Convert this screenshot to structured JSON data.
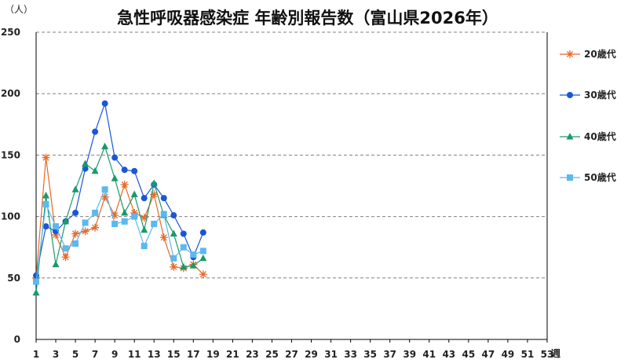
{
  "chart_data": {
    "type": "line",
    "title": "急性呼吸器感染症 年齢別報告数（富山県2026年）",
    "y_unit_label": "（人）",
    "x_unit_label": "週",
    "ylim": [
      0,
      250
    ],
    "yticks": [
      0,
      50,
      100,
      150,
      200,
      250
    ],
    "xlim": [
      1,
      53
    ],
    "xticks": [
      1,
      3,
      5,
      7,
      9,
      11,
      13,
      15,
      17,
      19,
      21,
      23,
      25,
      27,
      29,
      31,
      33,
      35,
      37,
      39,
      41,
      43,
      45,
      47,
      49,
      51,
      53
    ],
    "grid": "horizontal dashed",
    "legend_position": "right",
    "series": [
      {
        "name": "20歳代",
        "color": "#e8692a",
        "marker": "asterisk",
        "x": [
          1,
          2,
          3,
          4,
          5,
          6,
          7,
          8,
          9,
          10,
          11,
          12,
          13,
          14,
          15,
          16,
          17,
          18
        ],
        "values": [
          50,
          148,
          85,
          67,
          86,
          88,
          91,
          116,
          101,
          126,
          103,
          99,
          118,
          83,
          59,
          58,
          61,
          53
        ]
      },
      {
        "name": "30歳代",
        "color": "#1a56d6",
        "marker": "circle",
        "x": [
          1,
          2,
          3,
          4,
          5,
          6,
          7,
          8,
          9,
          10,
          11,
          12,
          13,
          14,
          15,
          16,
          17,
          18
        ],
        "values": [
          52,
          92,
          88,
          96,
          103,
          139,
          169,
          192,
          148,
          138,
          137,
          115,
          126,
          115,
          101,
          86,
          67,
          87
        ]
      },
      {
        "name": "40歳代",
        "color": "#1a9a6a",
        "marker": "triangle",
        "x": [
          1,
          2,
          3,
          4,
          5,
          6,
          7,
          8,
          9,
          10,
          11,
          12,
          13,
          14,
          15,
          16,
          17,
          18
        ],
        "values": [
          38,
          117,
          61,
          96,
          122,
          143,
          137,
          157,
          131,
          103,
          118,
          89,
          127,
          101,
          86,
          59,
          60,
          66
        ]
      },
      {
        "name": "50歳代",
        "color": "#5bb8f0",
        "marker": "square",
        "x": [
          1,
          2,
          3,
          4,
          5,
          6,
          7,
          8,
          9,
          10,
          11,
          12,
          13,
          14,
          15,
          16,
          17,
          18
        ],
        "values": [
          47,
          110,
          92,
          74,
          78,
          95,
          103,
          122,
          94,
          96,
          100,
          76,
          94,
          102,
          66,
          75,
          69,
          72
        ]
      }
    ]
  }
}
